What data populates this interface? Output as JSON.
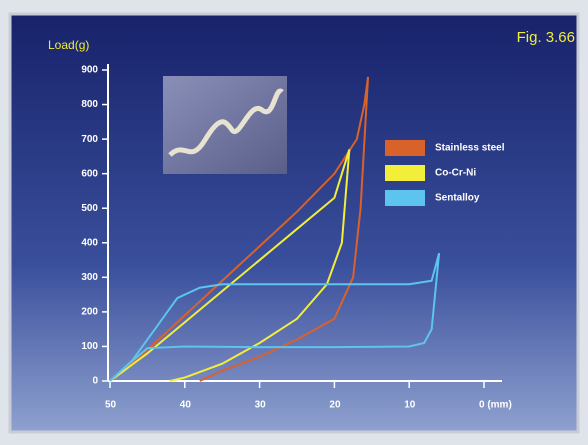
{
  "chart_data": {
    "type": "line",
    "title": "Fig. 3.66",
    "y_label": "Load(g)",
    "xlim": [
      50,
      0
    ],
    "ylim": [
      0,
      900
    ],
    "xticks": [
      50,
      40,
      30,
      20,
      10,
      {
        "value": 0,
        "label": "0 (mm)"
      }
    ],
    "yticks": [
      0,
      100,
      200,
      300,
      400,
      500,
      600,
      700,
      800,
      900
    ],
    "legend": "upper right",
    "series": [
      {
        "name": "Stainless steel",
        "color": "#d9622b",
        "x": [
          50,
          45,
          40,
          35,
          30,
          25,
          20,
          17,
          16,
          15.5,
          16.5,
          17.5,
          20,
          25,
          30,
          35,
          38
        ],
        "values": [
          0,
          90,
          190,
          290,
          390,
          490,
          600,
          700,
          800,
          880,
          500,
          300,
          180,
          120,
          70,
          30,
          0
        ]
      },
      {
        "name": "Co-Cr-Ni",
        "color": "#f2ee3a",
        "x": [
          50,
          45,
          40,
          35,
          30,
          25,
          20,
          18,
          19,
          21,
          25,
          30,
          35,
          40,
          42
        ],
        "values": [
          0,
          80,
          170,
          260,
          350,
          440,
          530,
          670,
          400,
          280,
          180,
          110,
          50,
          10,
          0
        ]
      },
      {
        "name": "Sentalloy",
        "color": "#5cc4ee",
        "x": [
          50,
          47,
          44,
          41,
          38,
          35,
          20,
          10,
          7,
          6,
          7,
          8,
          10,
          20,
          30,
          40,
          45,
          48,
          50
        ],
        "values": [
          0,
          60,
          150,
          240,
          270,
          280,
          280,
          280,
          290,
          370,
          150,
          110,
          100,
          98,
          98,
          100,
          95,
          40,
          0
        ]
      }
    ]
  }
}
